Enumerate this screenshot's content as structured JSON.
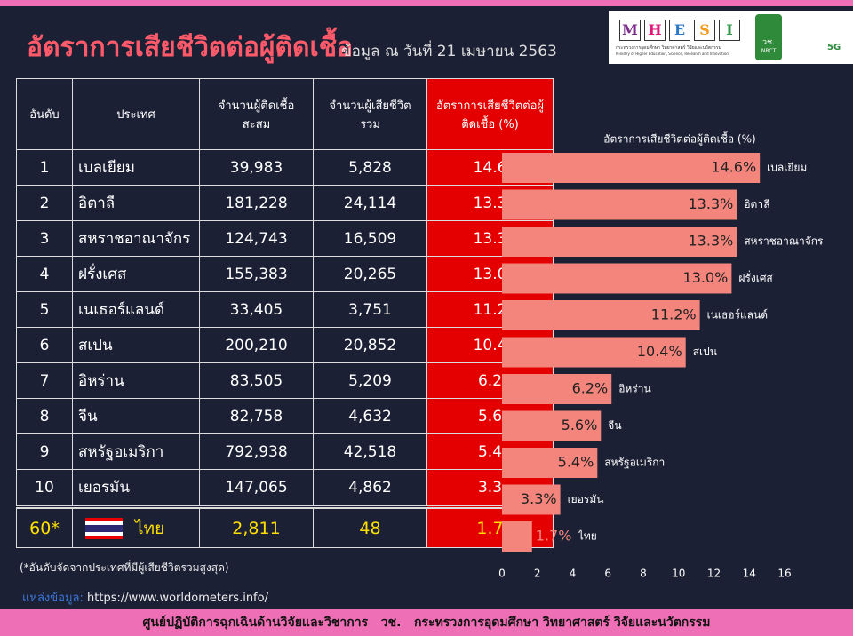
{
  "header": {
    "title": "อัตราการเสียชีวิตต่อผู้ติดเชื้อ",
    "subtitle": "ข้อมูล ณ วันที่ 21 เมษายน 2563",
    "logo_letters": [
      "M",
      "H",
      "E",
      "S",
      "I"
    ],
    "logo_line_th": "กระทรวงการอุดมศึกษา วิทยาศาสตร์ วิจัยและนวัตกรรม",
    "logo_line_en": "Ministry of Higher Education, Science, Research and Innovation",
    "nrct_th": "วช.",
    "nrct_en": "NRCT",
    "badge": "5G"
  },
  "table": {
    "columns": [
      "อันดับ",
      "ประเทศ",
      "จำนวนผู้ติดเชื้อสะสม",
      "จำนวนผู้เสียชีวิตรวม",
      "อัตราการเสียชีวิตต่อผู้ติดเชื้อ (%)"
    ],
    "rows": [
      [
        "1",
        "เบลเยียม",
        "39,983",
        "5,828",
        "14.6"
      ],
      [
        "2",
        "อิตาลี",
        "181,228",
        "24,114",
        "13.3"
      ],
      [
        "3",
        "สหราชอาณาจักร",
        "124,743",
        "16,509",
        "13.3"
      ],
      [
        "4",
        "ฝรั่งเศส",
        "155,383",
        "20,265",
        "13.0"
      ],
      [
        "5",
        "เนเธอร์แลนด์",
        "33,405",
        "3,751",
        "11.2"
      ],
      [
        "6",
        "สเปน",
        "200,210",
        "20,852",
        "10.4"
      ],
      [
        "7",
        "อิหร่าน",
        "83,505",
        "5,209",
        "6.2"
      ],
      [
        "8",
        "จีน",
        "82,758",
        "4,632",
        "5.6"
      ],
      [
        "9",
        "สหรัฐอเมริกา",
        "792,938",
        "42,518",
        "5.4"
      ],
      [
        "10",
        "เยอรมัน",
        "147,065",
        "4,862",
        "3.3"
      ],
      [
        "60*",
        "ไทย",
        "2,811",
        "48",
        "1.7"
      ]
    ]
  },
  "chart_data": {
    "type": "bar",
    "orientation": "horizontal",
    "title": "อัตราการเสียชีวิตต่อผู้ติดเชื้อ (%)",
    "categories": [
      "เบลเยียม",
      "อิตาลี",
      "สหราชอาณาจักร",
      "ฝรั่งเศส",
      "เนเธอร์แลนด์",
      "สเปน",
      "อิหร่าน",
      "จีน",
      "สหรัฐอเมริกา",
      "เยอรมัน",
      "ไทย"
    ],
    "values": [
      14.6,
      13.3,
      13.3,
      13.0,
      11.2,
      10.4,
      6.2,
      5.6,
      5.4,
      3.3,
      1.7
    ],
    "value_labels": [
      "14.6%",
      "13.3%",
      "13.3%",
      "13.0%",
      "11.2%",
      "10.4%",
      "6.2%",
      "5.6%",
      "5.4%",
      "3.3%",
      "1.7%"
    ],
    "color": "#f4857d",
    "xlim": [
      0,
      16
    ],
    "xticks": [
      0,
      2,
      4,
      6,
      8,
      10,
      12,
      14,
      16
    ]
  },
  "footnote": "(*อันดับจัดจากประเทศที่มีผู้เสียชีวิตรวมสูงสุด)",
  "source": {
    "label": "แหล่งข้อมูล:",
    "url": "https://www.worldometers.info/"
  },
  "footer": "ศูนย์ปฏิบัติการฉุกเฉินด้านวิจัยและวิชาการ   วช.   กระทรวงการอุดมศึกษา วิทยาศาสตร์ วิจัยและนวัตกรรม"
}
